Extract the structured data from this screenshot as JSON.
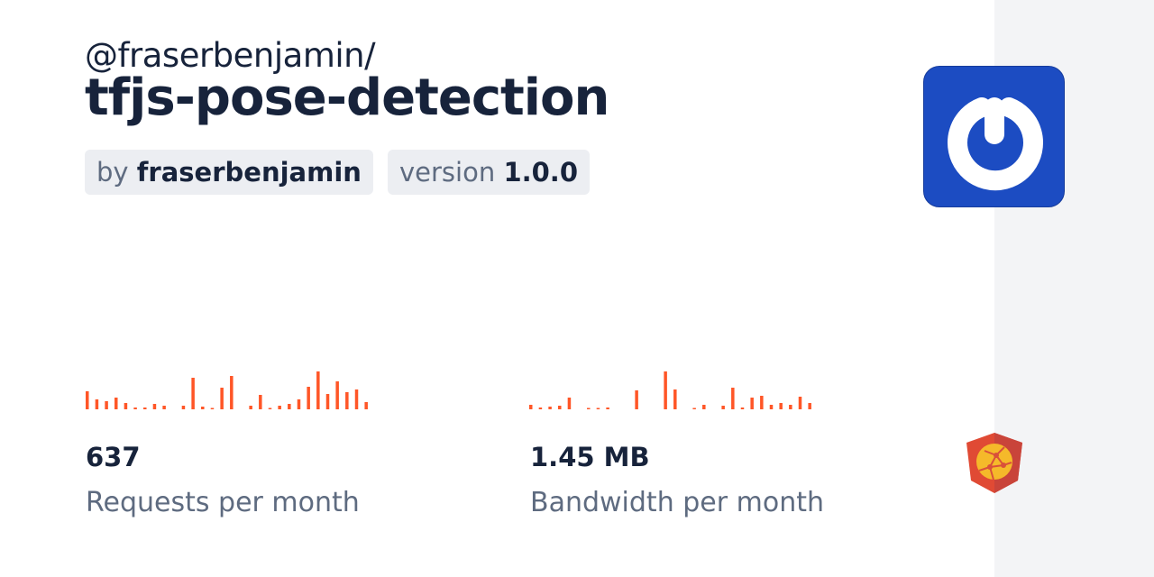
{
  "package": {
    "scope": "@fraserbenjamin/",
    "name": "tfjs-pose-detection",
    "author_prefix": "by",
    "author": "fraserbenjamin",
    "version_prefix": "version",
    "version": "1.0.0"
  },
  "stats": {
    "requests": {
      "value": "637",
      "label": "Requests per month"
    },
    "bandwidth": {
      "value": "1.45 MB",
      "label": "Bandwidth per month"
    }
  },
  "chart_data": [
    {
      "type": "bar",
      "name_hint": "requests",
      "values": [
        20,
        11,
        9,
        13,
        7,
        2,
        2,
        6,
        4,
        0,
        4,
        35,
        3,
        1,
        24,
        37,
        0,
        4,
        16,
        1,
        4,
        6,
        11,
        25,
        42,
        17,
        31,
        19,
        22,
        8
      ]
    },
    {
      "type": "bar",
      "name_hint": "bandwidth",
      "values": [
        5,
        2,
        3,
        4,
        13,
        0,
        1,
        1,
        2,
        0,
        0,
        21,
        0,
        0,
        42,
        22,
        0,
        1,
        5,
        0,
        4,
        24,
        2,
        13,
        15,
        5,
        7,
        5,
        14,
        7
      ]
    }
  ],
  "colors": {
    "accent": "#ff5627",
    "logo_bg": "#1c4cc2",
    "sidebar": "#f3f4f6"
  },
  "icons": {
    "package_logo": "power-ring-icon",
    "badge": "angular-shield-globe-icon"
  }
}
